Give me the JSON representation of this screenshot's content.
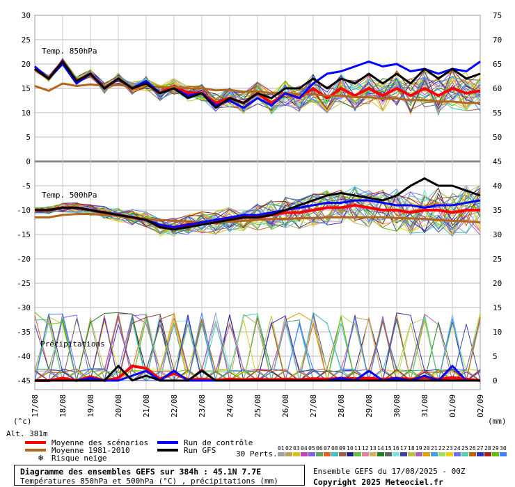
{
  "panels": {
    "t850_label": "Temp. 850hPa",
    "t500_label": "Temp. 500hPa",
    "precip_label": "Précipitations"
  },
  "axes": {
    "left_unit": "(°c)",
    "right_unit": "(mm)",
    "altitude": "Alt. 381m",
    "left_ticks": [
      "30",
      "25",
      "20",
      "15",
      "10",
      "5",
      "0",
      "-5",
      "-10",
      "-15",
      "-20",
      "-25",
      "-30",
      "-35",
      "-40",
      "-45"
    ],
    "right_ticks": [
      "75",
      "70",
      "65",
      "60",
      "55",
      "50",
      "45",
      "40",
      "35",
      "30",
      "25",
      "20",
      "15",
      "10",
      "5",
      "0"
    ],
    "date_labels": [
      "17/08",
      "18/08",
      "19/08",
      "20/08",
      "21/08",
      "22/08",
      "23/08",
      "24/08",
      "25/08",
      "26/08",
      "27/08",
      "28/08",
      "29/08",
      "30/08",
      "31/08",
      "01/09",
      "02/09"
    ]
  },
  "legend": {
    "mean_scenarios": "Moyenne des scénarios",
    "mean_climo": "Moyenne 1981-2010",
    "snow_risk": "Risque neige",
    "control_run": "Run de contrôle",
    "gfs_run": "Run GFS",
    "perts_label": "30 Perts.",
    "pert_numbers": [
      "01",
      "02",
      "03",
      "04",
      "05",
      "06",
      "07",
      "08",
      "09",
      "10",
      "11",
      "12",
      "13",
      "14",
      "15",
      "16",
      "17",
      "18",
      "19",
      "20",
      "21",
      "22",
      "23",
      "24",
      "25",
      "26",
      "27",
      "28",
      "29",
      "30"
    ]
  },
  "colors": {
    "mean": "#ff0000",
    "climo": "#b5651d",
    "control": "#0000ff",
    "gfs": "#000000",
    "snow": "#66aaff",
    "perts": [
      "#a0a0a0",
      "#c0a060",
      "#e0c020",
      "#c040c0",
      "#8060e0",
      "#60a060",
      "#e06020",
      "#40c0c0",
      "#a06040",
      "#202080",
      "#60c040",
      "#e080a0",
      "#d0b060",
      "#208020",
      "#606060",
      "#80e0e0",
      "#4040a0",
      "#c0c040",
      "#b060b0",
      "#e0a000",
      "#40a0e0",
      "#a0e060",
      "#f0d000",
      "#7070f0",
      "#50d0b0",
      "#c06000",
      "#3030c0",
      "#a02020",
      "#60c000",
      "#4080ff"
    ]
  },
  "title": {
    "line1": "Diagramme des ensembles GEFS sur 384h : 45.1N 7.7E",
    "line2": "Températures 850hPa et 500hPa (°C) , précipitations (mm)"
  },
  "run_info": "Ensemble GEFS du 17/08/2025 - 00Z",
  "copyright": "Copyright 2025 Meteociel.fr",
  "chart_data": [
    {
      "type": "line",
      "name": "t850",
      "title": "Temp. 850hPa",
      "ylabel": "(°c)",
      "x_days": [
        0,
        0.5,
        1,
        1.5,
        2,
        2.5,
        3,
        3.5,
        4,
        4.5,
        5,
        5.5,
        6,
        6.5,
        7,
        7.5,
        8,
        8.5,
        9,
        9.5,
        10,
        10.5,
        11,
        11.5,
        12,
        12.5,
        13,
        13.5,
        14,
        14.5,
        15,
        15.5,
        16
      ],
      "series": [
        {
          "name": "Moyenne des scénarios",
          "values": [
            19,
            17,
            20.5,
            16.5,
            18,
            15,
            17,
            15,
            16,
            14,
            15.5,
            14,
            14,
            12,
            13,
            12,
            14,
            12,
            14,
            13,
            15,
            13,
            15,
            13.5,
            15,
            13.5,
            15,
            13.5,
            15,
            13.5,
            15,
            14,
            14.5
          ]
        },
        {
          "name": "Moyenne 1981-2010",
          "values": [
            15.5,
            14.5,
            16,
            15.5,
            15.8,
            15.5,
            15.7,
            15.4,
            15.6,
            15.2,
            15.3,
            15,
            15,
            14.6,
            14.7,
            14.3,
            14.4,
            14,
            14.1,
            13.7,
            13.8,
            13.5,
            13.5,
            13.2,
            13.2,
            12.9,
            12.9,
            12.6,
            12.6,
            12.3,
            12.3,
            12,
            12
          ]
        },
        {
          "name": "Run de contrôle",
          "values": [
            19.5,
            17,
            20,
            16,
            18,
            15,
            17,
            15,
            16.5,
            14,
            15,
            13.5,
            14,
            11.5,
            12.5,
            11,
            13,
            11.5,
            14,
            13,
            16,
            18,
            18.5,
            19.5,
            20.5,
            19.5,
            20,
            18.5,
            19,
            18,
            19,
            18.5,
            20.5
          ]
        },
        {
          "name": "Run GFS",
          "values": [
            19,
            17,
            20.5,
            16.5,
            18,
            15,
            17,
            15,
            16,
            14,
            15,
            13,
            14,
            11,
            13,
            12,
            14,
            13,
            15,
            15,
            17,
            15,
            17,
            16,
            18,
            16,
            18,
            16,
            19,
            17,
            19,
            17,
            18
          ]
        }
      ],
      "ylim": [
        -45,
        30
      ]
    },
    {
      "type": "line",
      "name": "t500",
      "title": "Temp. 500hPa",
      "ylabel": "(°c)",
      "x_days": [
        0,
        0.5,
        1,
        1.5,
        2,
        2.5,
        3,
        3.5,
        4,
        4.5,
        5,
        5.5,
        6,
        6.5,
        7,
        7.5,
        8,
        8.5,
        9,
        9.5,
        10,
        10.5,
        11,
        11.5,
        12,
        12.5,
        13,
        13.5,
        14,
        14.5,
        15,
        15.5,
        16
      ],
      "series": [
        {
          "name": "Moyenne des scénarios",
          "values": [
            -10,
            -10,
            -9.5,
            -9.5,
            -10,
            -10.5,
            -11,
            -11.5,
            -12,
            -13.5,
            -13.5,
            -13,
            -12.5,
            -12.5,
            -12,
            -11.5,
            -11.5,
            -11,
            -10.5,
            -10.5,
            -10,
            -9.5,
            -9.5,
            -9,
            -9.5,
            -10,
            -10,
            -10.5,
            -10,
            -10,
            -10.5,
            -10,
            -10
          ]
        },
        {
          "name": "Moyenne 1981-2010",
          "values": [
            -11.5,
            -11.5,
            -11,
            -10.8,
            -10.8,
            -11,
            -11.2,
            -11.5,
            -11.8,
            -12,
            -12.2,
            -12.3,
            -12.5,
            -12.5,
            -12.4,
            -12.2,
            -12,
            -11.8,
            -11.8,
            -11.7,
            -11.6,
            -11.5,
            -11.5,
            -11.5,
            -11.5,
            -11.5,
            -11.6,
            -11.7,
            -11.8,
            -12,
            -12.2,
            -12.3,
            -12.5
          ]
        },
        {
          "name": "Run de contrôle",
          "values": [
            -10,
            -10,
            -9.5,
            -9.5,
            -10,
            -10.5,
            -11,
            -11.5,
            -12,
            -13,
            -13.5,
            -13,
            -12.5,
            -12,
            -11.5,
            -11,
            -11,
            -10.5,
            -10,
            -9.5,
            -9,
            -8.5,
            -8.5,
            -8,
            -8,
            -8.5,
            -9,
            -9,
            -9.5,
            -9,
            -9,
            -8.5,
            -8
          ]
        },
        {
          "name": "Run GFS",
          "values": [
            -10,
            -10,
            -9.5,
            -9.5,
            -10,
            -10.5,
            -11,
            -11.5,
            -12,
            -13.5,
            -14,
            -13.5,
            -13,
            -12.5,
            -12,
            -11.5,
            -11.5,
            -11,
            -10,
            -9,
            -8,
            -7,
            -6.5,
            -7,
            -7.5,
            -8,
            -7,
            -5,
            -3.5,
            -5,
            -5,
            -6,
            -7
          ]
        }
      ],
      "ylim": [
        -45,
        30
      ]
    },
    {
      "type": "line",
      "name": "precipitation",
      "title": "Précipitations",
      "ylabel": "(mm)",
      "x_days": [
        0,
        0.5,
        1,
        1.5,
        2,
        2.5,
        3,
        3.5,
        4,
        4.5,
        5,
        5.5,
        6,
        6.5,
        7,
        7.5,
        8,
        8.5,
        9,
        9.5,
        10,
        10.5,
        11,
        11.5,
        12,
        12.5,
        13,
        13.5,
        14,
        14.5,
        15,
        15.5,
        16
      ],
      "series": [
        {
          "name": "Moyenne des scénarios",
          "values": [
            0,
            0,
            0.5,
            0,
            0.8,
            0,
            0.5,
            3,
            2.5,
            0.3,
            1.5,
            0.2,
            0.3,
            0.1,
            0.3,
            0.2,
            0.3,
            0.2,
            0.3,
            0.2,
            0.4,
            0.3,
            0.5,
            0.4,
            0.5,
            0.3,
            0.5,
            0.3,
            0.6,
            0.3,
            0.6,
            0.3,
            0
          ]
        },
        {
          "name": "Run de contrôle",
          "values": [
            0,
            0,
            0,
            0,
            0.5,
            0,
            0,
            1,
            2,
            0,
            2,
            0,
            0,
            0,
            0,
            0,
            0,
            0,
            0,
            0,
            0,
            0,
            0.5,
            0,
            2,
            0,
            0.5,
            0,
            1,
            0,
            3,
            0,
            0
          ]
        },
        {
          "name": "Run GFS",
          "values": [
            0,
            0,
            0,
            0,
            0,
            0,
            3,
            0,
            1,
            0,
            0,
            0,
            2,
            0,
            0,
            0,
            0,
            0,
            0,
            0,
            0,
            0,
            0,
            0,
            0,
            0,
            0,
            0,
            0,
            0,
            0,
            0,
            0
          ]
        }
      ],
      "ylim": [
        0,
        75
      ]
    }
  ]
}
